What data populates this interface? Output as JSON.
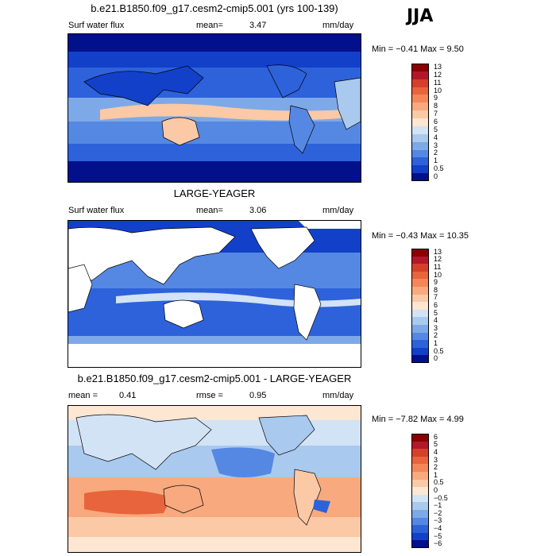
{
  "season": "JJA",
  "palette": {
    "ocean_land_fill": "#ffffff",
    "coast_color": "#000000"
  },
  "chart_data": [
    {
      "type": "heatmap",
      "title": "b.e21.B1850.f09_g17.cesm2-cmip5.001 (yrs 100-139)",
      "left_label": "Surf water flux",
      "stat_label": "mean=",
      "stat_value": "3.47",
      "units": "mm/day",
      "range_text": "Min =  −0.41 Max =    9.50",
      "levels": [
        "13",
        "12",
        "11",
        "10",
        "9",
        "8",
        "7",
        "6",
        "5",
        "4",
        "3",
        "2",
        "1",
        "0.5",
        "0"
      ],
      "colors": [
        "#8b0000",
        "#b2182b",
        "#d6402b",
        "#e8643c",
        "#f4865a",
        "#f8a97e",
        "#fbc9a6",
        "#fde6d2",
        "#d2e3f5",
        "#a9c9ee",
        "#7ea9e8",
        "#5588e2",
        "#2d62da",
        "#1240c9",
        "#02108c"
      ]
    },
    {
      "type": "heatmap",
      "title": "LARGE-YEAGER",
      "left_label": "Surf water flux",
      "stat_label": "mean=",
      "stat_value": "3.06",
      "units": "mm/day",
      "range_text": "Min =  −0.43 Max =   10.35",
      "levels": [
        "13",
        "12",
        "11",
        "10",
        "9",
        "8",
        "7",
        "6",
        "5",
        "4",
        "3",
        "2",
        "1",
        "0.5",
        "0"
      ],
      "colors": [
        "#8b0000",
        "#b2182b",
        "#d6402b",
        "#e8643c",
        "#f4865a",
        "#f8a97e",
        "#fbc9a6",
        "#fde6d2",
        "#d2e3f5",
        "#a9c9ee",
        "#7ea9e8",
        "#5588e2",
        "#2d62da",
        "#1240c9",
        "#02108c"
      ]
    },
    {
      "type": "heatmap",
      "title": "b.e21.B1850.f09_g17.cesm2-cmip5.001 - LARGE-YEAGER",
      "left_label": "mean =",
      "left_value": "0.41",
      "stat_label": "rmse =",
      "stat_value": "0.95",
      "units": "mm/day",
      "range_text": "Min =  −7.82 Max =    4.99",
      "levels": [
        "6",
        "5",
        "4",
        "3",
        "2",
        "1",
        "0.5",
        "0",
        "−0.5",
        "−1",
        "−2",
        "−3",
        "−4",
        "−5",
        "−6"
      ],
      "colors": [
        "#8b0000",
        "#b2182b",
        "#d6402b",
        "#e8643c",
        "#f4865a",
        "#f8a97e",
        "#fbc9a6",
        "#fde6d2",
        "#d2e3f5",
        "#a9c9ee",
        "#7ea9e8",
        "#5588e2",
        "#2d62da",
        "#1240c9",
        "#02108c"
      ]
    }
  ]
}
